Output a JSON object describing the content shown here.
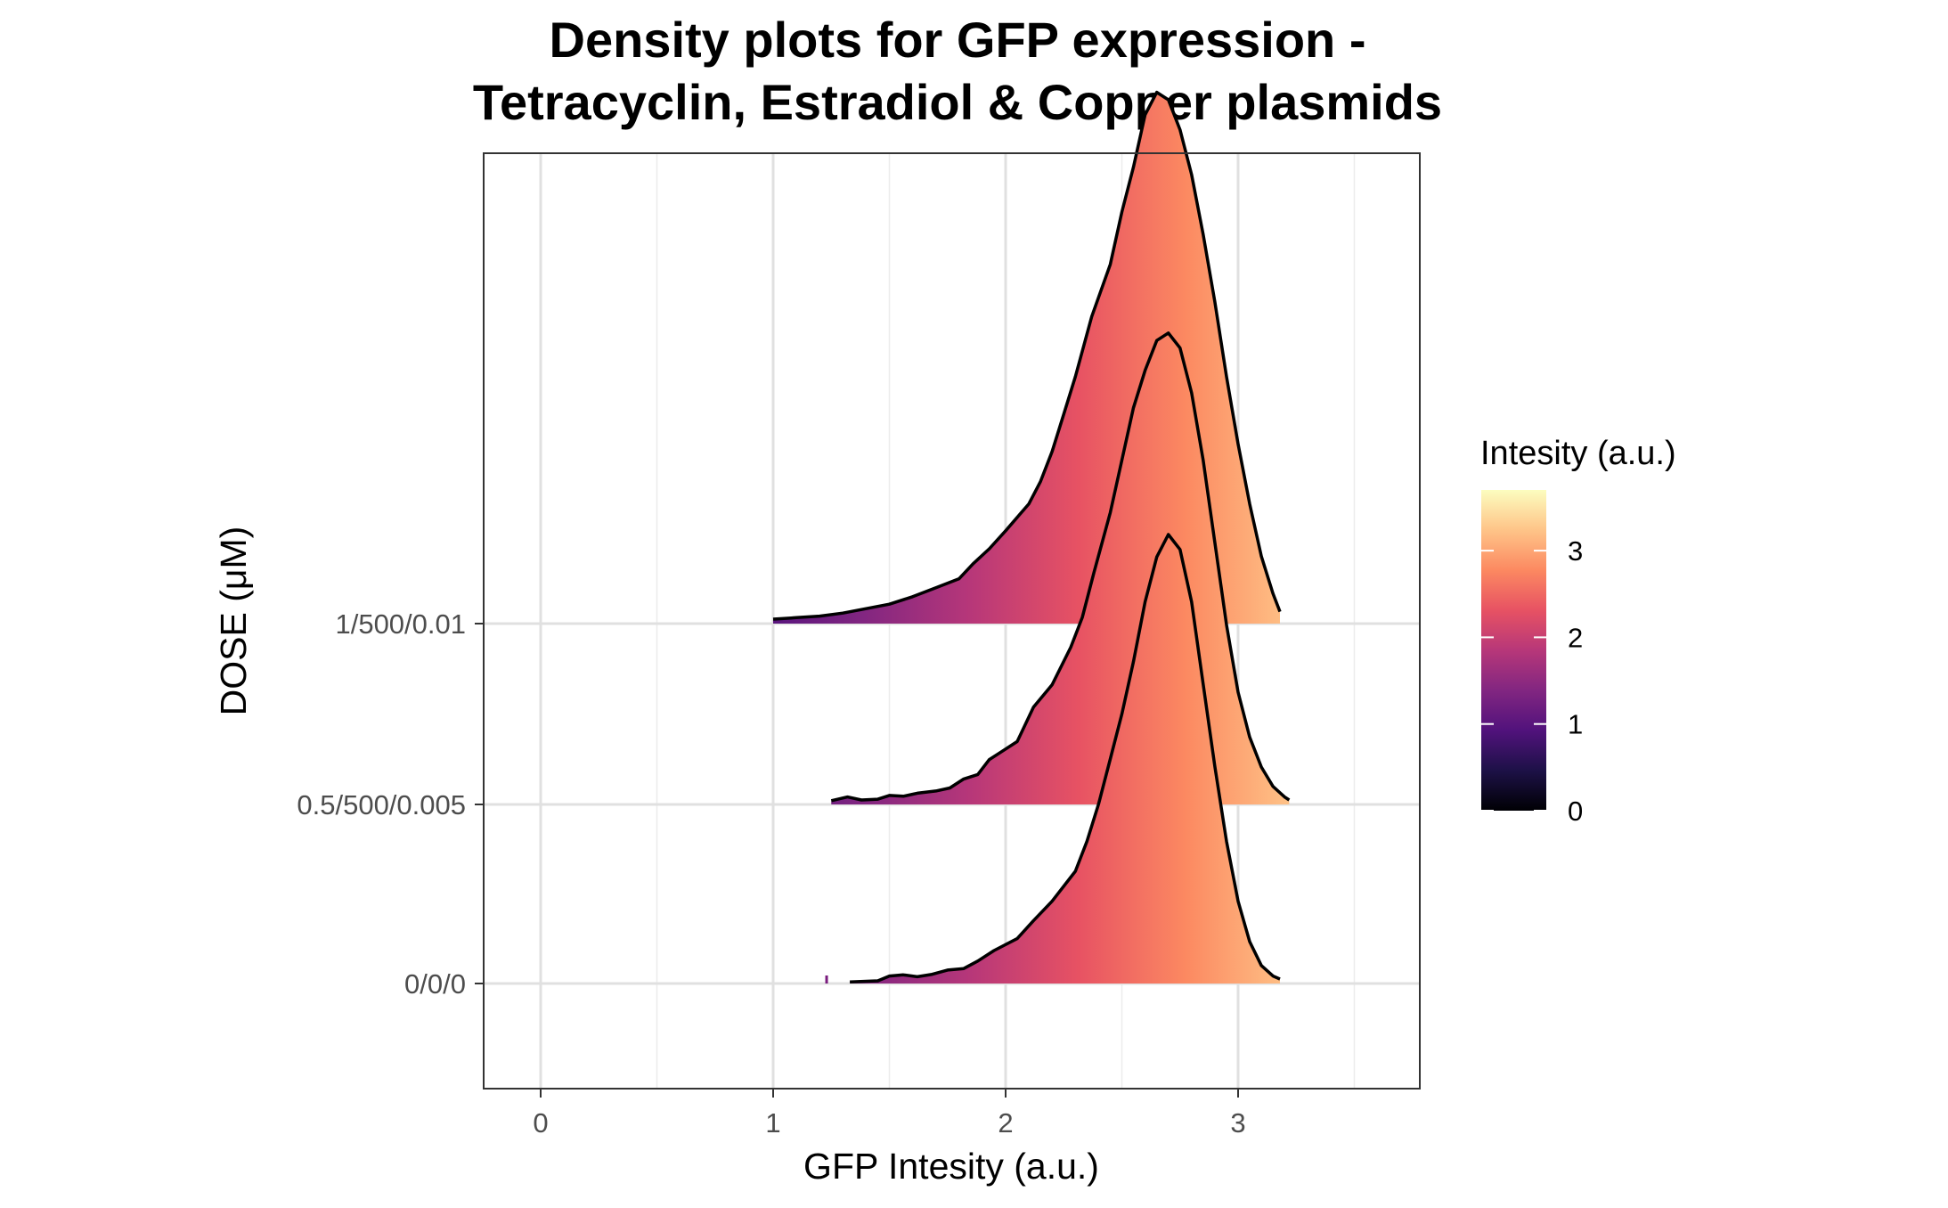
{
  "chart_data": {
    "type": "density-ridgeline",
    "title": "Density plots for GFP expression -\nTetracyclin, Estradiol & Copper plasmids",
    "xlabel": "GFP Intesity (a.u.)",
    "ylabel": "DOSE (μM)",
    "xlim": [
      -0.25,
      3.8
    ],
    "x_ticks": [
      0,
      1,
      2,
      3
    ],
    "grid": true,
    "categories": [
      "0/0/0",
      "0.5/500/0.005",
      "1/500/0.01"
    ],
    "series": [
      {
        "category": "0/0/0",
        "x_min": 1.33,
        "x_max": 3.18,
        "points": [
          [
            1.33,
            0.01
          ],
          [
            1.4,
            0.015
          ],
          [
            1.45,
            0.018
          ],
          [
            1.5,
            0.05
          ],
          [
            1.56,
            0.058
          ],
          [
            1.62,
            0.045
          ],
          [
            1.68,
            0.06
          ],
          [
            1.75,
            0.09
          ],
          [
            1.82,
            0.1
          ],
          [
            1.88,
            0.15
          ],
          [
            1.95,
            0.22
          ],
          [
            2.05,
            0.3
          ],
          [
            2.12,
            0.42
          ],
          [
            2.2,
            0.55
          ],
          [
            2.3,
            0.75
          ],
          [
            2.35,
            0.95
          ],
          [
            2.4,
            1.2
          ],
          [
            2.45,
            1.5
          ],
          [
            2.5,
            1.8
          ],
          [
            2.55,
            2.15
          ],
          [
            2.6,
            2.55
          ],
          [
            2.65,
            2.85
          ],
          [
            2.7,
            3.0
          ],
          [
            2.75,
            2.9
          ],
          [
            2.8,
            2.55
          ],
          [
            2.85,
            2.0
          ],
          [
            2.9,
            1.45
          ],
          [
            2.95,
            0.95
          ],
          [
            3.0,
            0.55
          ],
          [
            3.05,
            0.28
          ],
          [
            3.1,
            0.12
          ],
          [
            3.15,
            0.05
          ],
          [
            3.18,
            0.03
          ]
        ],
        "outlier_x": 1.23
      },
      {
        "category": "0.5/500/0.005",
        "x_min": 1.25,
        "x_max": 3.22,
        "points": [
          [
            1.25,
            0.025
          ],
          [
            1.32,
            0.05
          ],
          [
            1.38,
            0.03
          ],
          [
            1.45,
            0.035
          ],
          [
            1.5,
            0.06
          ],
          [
            1.56,
            0.055
          ],
          [
            1.62,
            0.075
          ],
          [
            1.7,
            0.09
          ],
          [
            1.76,
            0.11
          ],
          [
            1.82,
            0.17
          ],
          [
            1.88,
            0.2
          ],
          [
            1.93,
            0.3
          ],
          [
            1.98,
            0.35
          ],
          [
            2.05,
            0.42
          ],
          [
            2.12,
            0.65
          ],
          [
            2.2,
            0.8
          ],
          [
            2.28,
            1.05
          ],
          [
            2.33,
            1.25
          ],
          [
            2.38,
            1.55
          ],
          [
            2.45,
            1.95
          ],
          [
            2.5,
            2.3
          ],
          [
            2.55,
            2.65
          ],
          [
            2.6,
            2.9
          ],
          [
            2.65,
            3.1
          ],
          [
            2.7,
            3.15
          ],
          [
            2.75,
            3.05
          ],
          [
            2.8,
            2.75
          ],
          [
            2.85,
            2.3
          ],
          [
            2.9,
            1.75
          ],
          [
            2.95,
            1.2
          ],
          [
            3.0,
            0.75
          ],
          [
            3.05,
            0.45
          ],
          [
            3.1,
            0.25
          ],
          [
            3.15,
            0.12
          ],
          [
            3.2,
            0.05
          ],
          [
            3.22,
            0.03
          ]
        ]
      },
      {
        "category": "1/500/0.01",
        "x_min": 1.0,
        "x_max": 3.18,
        "points": [
          [
            1.0,
            0.03
          ],
          [
            1.1,
            0.04
          ],
          [
            1.2,
            0.05
          ],
          [
            1.3,
            0.07
          ],
          [
            1.4,
            0.1
          ],
          [
            1.5,
            0.13
          ],
          [
            1.6,
            0.18
          ],
          [
            1.7,
            0.24
          ],
          [
            1.8,
            0.3
          ],
          [
            1.86,
            0.4
          ],
          [
            1.93,
            0.5
          ],
          [
            2.0,
            0.62
          ],
          [
            2.1,
            0.8
          ],
          [
            2.15,
            0.95
          ],
          [
            2.2,
            1.15
          ],
          [
            2.25,
            1.4
          ],
          [
            2.3,
            1.65
          ],
          [
            2.37,
            2.05
          ],
          [
            2.45,
            2.4
          ],
          [
            2.5,
            2.75
          ],
          [
            2.55,
            3.05
          ],
          [
            2.6,
            3.4
          ],
          [
            2.65,
            3.55
          ],
          [
            2.7,
            3.5
          ],
          [
            2.75,
            3.3
          ],
          [
            2.8,
            3.0
          ],
          [
            2.85,
            2.6
          ],
          [
            2.9,
            2.15
          ],
          [
            2.95,
            1.65
          ],
          [
            3.0,
            1.2
          ],
          [
            3.05,
            0.8
          ],
          [
            3.1,
            0.45
          ],
          [
            3.15,
            0.2
          ],
          [
            3.18,
            0.08
          ]
        ]
      }
    ],
    "legend": {
      "title": "Intesity (a.u.)",
      "ticks": [
        "0",
        "1",
        "2",
        "3"
      ],
      "range": [
        0,
        3.7
      ],
      "position": "right",
      "palette": "magma",
      "colors": [
        "#000004",
        "#1d1147",
        "#51127c",
        "#822681",
        "#b73779",
        "#e75263",
        "#fc8961",
        "#fec488",
        "#fcfdbf"
      ]
    }
  }
}
